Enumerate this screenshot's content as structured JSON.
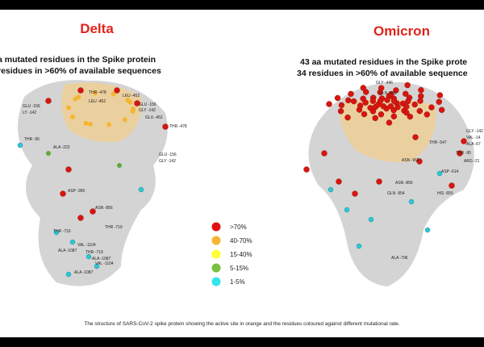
{
  "header": {
    "left_title": "Delta",
    "right_title": "Omicron",
    "left_subtitle": [
      "a mutated residues in the Spike protein",
      "residues in >60% of available sequences"
    ],
    "right_subtitle": [
      "43 aa mutated residues in the Spike prote",
      "34 residues in >60% of available sequence"
    ]
  },
  "residues": {
    "left": [
      "GLU -156",
      "LY -142",
      "THR -478",
      "LEU -452",
      "LEU -452",
      "GLU -156",
      "GLY -142",
      "GLU -452",
      "THR -478",
      "THR -95",
      "ALA -222",
      "GLU -156",
      "GLY -142",
      "ASP -950",
      "ASN -856",
      "THR -719",
      "THR -716",
      "VAL -1104",
      "ALA -1087",
      "THR -719",
      "ALA -1087",
      "VAL -1104",
      "ALA -1087"
    ],
    "right": [
      "GLY -446",
      "GLN -493",
      "THR -547",
      "ASN -969",
      "ASN -856",
      "GLN -954",
      "ASP -614",
      "HIS -655",
      "GLY -142",
      "VAL -14",
      "ALA -67",
      "THR -95",
      "ARG -21",
      "ALA -796"
    ]
  },
  "legend": {
    "items": [
      ">70%",
      "40-70%",
      "15-40%",
      "5-15%",
      "1-5%"
    ]
  },
  "caption": "The structure of SARS-CoV-2 spike protein showing the active site in orange and the residues coloured against different mutational rate."
}
